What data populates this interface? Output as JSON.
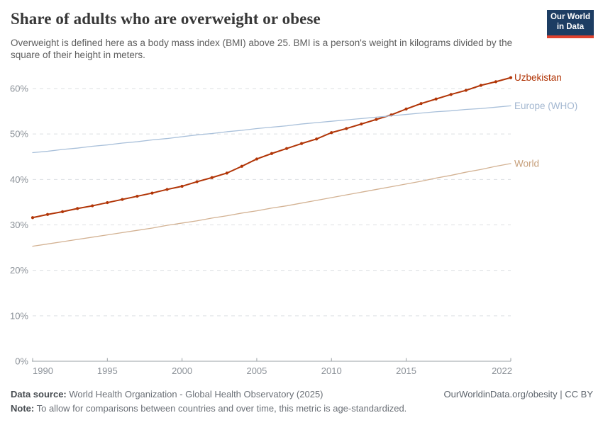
{
  "header": {
    "title": "Share of adults who are overweight or obese",
    "subtitle": "Overweight is defined here as a body mass index (BMI) above 25. BMI is a person's weight in kilograms divided by the square of their height in meters.",
    "logo": {
      "line1": "Our World",
      "line2": "in Data"
    }
  },
  "chart_data": {
    "type": "line",
    "title": "Share of adults who are overweight or obese",
    "xlabel": "",
    "ylabel": "",
    "ylim": [
      0,
      65
    ],
    "grid": "horizontal-dashed",
    "legend_position": "right-edge-labels",
    "y_ticks": [
      0,
      10,
      20,
      30,
      40,
      50,
      60
    ],
    "y_tick_suffix": "%",
    "x_ticks": [
      1990,
      1995,
      2000,
      2005,
      2010,
      2015,
      2022
    ],
    "x": [
      1990,
      1991,
      1992,
      1993,
      1994,
      1995,
      1996,
      1997,
      1998,
      1999,
      2000,
      2001,
      2002,
      2003,
      2004,
      2005,
      2006,
      2007,
      2008,
      2009,
      2010,
      2011,
      2012,
      2013,
      2014,
      2015,
      2016,
      2017,
      2018,
      2019,
      2020,
      2021,
      2022
    ],
    "series": [
      {
        "name": "Uzbekistan",
        "color": "#b13507",
        "label_color": "#b13507",
        "line_width": 2,
        "markers": true,
        "values": [
          31.6,
          32.3,
          32.9,
          33.6,
          34.2,
          34.9,
          35.6,
          36.3,
          37.0,
          37.8,
          38.5,
          39.5,
          40.4,
          41.4,
          42.9,
          44.5,
          45.7,
          46.8,
          47.9,
          48.9,
          50.3,
          51.2,
          52.2,
          53.2,
          54.2,
          55.5,
          56.7,
          57.7,
          58.7,
          59.6,
          60.7,
          61.5,
          62.4
        ]
      },
      {
        "name": "Europe (WHO)",
        "color": "#a9c0da",
        "label_color": "#a3b7d0",
        "line_width": 1.3,
        "markers": false,
        "values": [
          45.9,
          46.2,
          46.6,
          46.9,
          47.3,
          47.6,
          48.0,
          48.3,
          48.7,
          49.0,
          49.4,
          49.8,
          50.1,
          50.5,
          50.8,
          51.2,
          51.5,
          51.8,
          52.2,
          52.5,
          52.8,
          53.1,
          53.4,
          53.7,
          54.0,
          54.3,
          54.6,
          54.9,
          55.1,
          55.4,
          55.6,
          55.9,
          56.2
        ]
      },
      {
        "name": "World",
        "color": "#d3b293",
        "label_color": "#c7a07c",
        "line_width": 1.3,
        "markers": false,
        "values": [
          25.3,
          25.8,
          26.3,
          26.8,
          27.3,
          27.8,
          28.3,
          28.8,
          29.3,
          29.9,
          30.4,
          30.9,
          31.5,
          32.0,
          32.6,
          33.1,
          33.7,
          34.2,
          34.8,
          35.4,
          36.0,
          36.6,
          37.2,
          37.8,
          38.4,
          39.0,
          39.6,
          40.3,
          40.9,
          41.6,
          42.2,
          42.9,
          43.5
        ]
      }
    ]
  },
  "footer": {
    "source_label": "Data source:",
    "source_text": " World Health Organization - Global Health Observatory (2025)",
    "note_label": "Note:",
    "note_text": " To allow for comparisons between countries and over time, this metric is age-standardized.",
    "link": "OurWorldinData.org/obesity | CC BY"
  }
}
